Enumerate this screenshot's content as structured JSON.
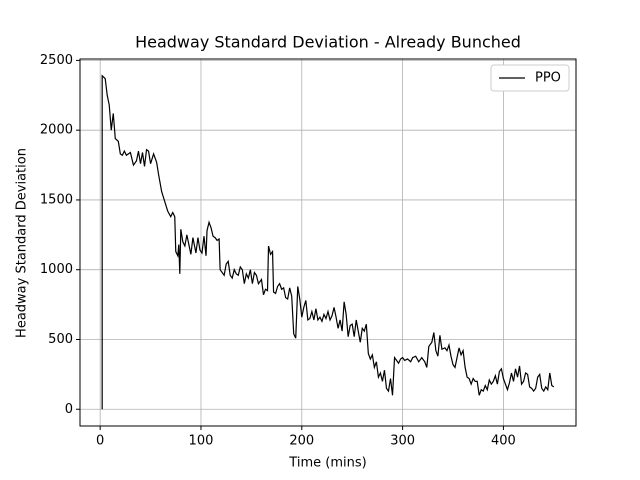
{
  "chart_data": {
    "type": "line",
    "title": "Headway Standard Deviation - Already Bunched",
    "xlabel": "Time (mins)",
    "ylabel": "Headway Standard Deviation",
    "xlim": [
      -20,
      472
    ],
    "ylim": [
      -120,
      2510
    ],
    "xticks": [
      0,
      100,
      200,
      300,
      400
    ],
    "yticks": [
      0,
      500,
      1000,
      1500,
      2000,
      2500
    ],
    "grid": true,
    "legend": "upper right",
    "x": [
      2,
      2,
      5,
      7,
      9,
      11,
      13,
      15,
      18,
      20,
      22,
      24,
      26,
      30,
      33,
      36,
      38,
      40,
      42,
      44,
      46,
      48,
      50,
      53,
      56,
      58,
      61,
      64,
      67,
      70,
      72,
      74,
      75,
      77,
      78,
      79,
      80,
      82,
      84,
      86,
      88,
      90,
      92,
      95,
      97,
      99,
      101,
      103,
      105,
      106,
      108,
      110,
      112,
      114,
      116,
      118,
      119,
      121,
      123,
      125,
      127,
      129,
      131,
      133,
      135,
      137,
      139,
      141,
      143,
      145,
      147,
      149,
      151,
      153,
      155,
      157,
      160,
      162,
      164,
      166,
      167,
      169,
      171,
      172,
      174,
      176,
      178,
      180,
      182,
      184,
      186,
      188,
      190,
      192,
      194,
      196,
      198,
      200,
      202,
      204,
      206,
      208,
      210,
      212,
      214,
      216,
      218,
      220,
      222,
      224,
      226,
      228,
      230,
      232,
      234,
      236,
      238,
      240,
      242,
      244,
      246,
      248,
      250,
      252,
      254,
      256,
      258,
      260,
      262,
      264,
      266,
      268,
      270,
      272,
      274,
      276,
      278,
      280,
      282,
      284,
      286,
      288,
      290,
      292,
      294,
      296,
      298,
      300,
      302,
      305,
      308,
      310,
      313,
      316,
      319,
      322,
      324,
      326,
      329,
      331,
      333,
      335,
      337,
      339,
      342,
      344,
      346,
      348,
      350,
      352,
      354,
      356,
      358,
      360,
      362,
      364,
      366,
      368,
      370,
      372,
      374,
      376,
      378,
      380,
      382,
      384,
      386,
      388,
      390,
      392,
      394,
      396,
      398,
      400,
      402,
      404,
      406,
      408,
      410,
      412,
      414,
      416,
      418,
      420,
      422,
      424,
      426,
      428,
      430,
      432,
      434,
      436,
      438,
      440,
      442,
      444,
      446,
      448,
      450
    ],
    "series": [
      {
        "name": "PPO",
        "color": "#000000",
        "values": [
          0,
          2390,
          2370,
          2250,
          2180,
          2000,
          2120,
          1940,
          1920,
          1830,
          1820,
          1850,
          1820,
          1840,
          1750,
          1780,
          1850,
          1760,
          1840,
          1740,
          1860,
          1850,
          1760,
          1830,
          1770,
          1680,
          1560,
          1490,
          1420,
          1380,
          1410,
          1380,
          1130,
          1100,
          1180,
          970,
          1290,
          1200,
          1170,
          1250,
          1180,
          1110,
          1230,
          1120,
          1230,
          1140,
          1120,
          1240,
          1100,
          1280,
          1340,
          1300,
          1240,
          1230,
          1210,
          1220,
          1000,
          980,
          960,
          1040,
          1060,
          960,
          940,
          1000,
          970,
          960,
          1020,
          1000,
          900,
          970,
          940,
          1000,
          900,
          980,
          960,
          900,
          930,
          820,
          860,
          850,
          1170,
          1110,
          1130,
          840,
          830,
          880,
          900,
          860,
          870,
          800,
          790,
          870,
          810,
          540,
          510,
          880,
          790,
          660,
          730,
          780,
          640,
          650,
          700,
          640,
          720,
          640,
          660,
          630,
          680,
          650,
          700,
          640,
          670,
          730,
          660,
          580,
          640,
          560,
          770,
          680,
          520,
          600,
          610,
          520,
          640,
          560,
          480,
          580,
          560,
          610,
          400,
          360,
          390,
          300,
          340,
          230,
          260,
          200,
          280,
          150,
          130,
          220,
          100,
          370,
          350,
          330,
          360,
          370,
          350,
          360,
          340,
          370,
          380,
          340,
          370,
          340,
          300,
          450,
          480,
          550,
          420,
          380,
          530,
          430,
          440,
          420,
          460,
          380,
          320,
          300,
          370,
          440,
          390,
          420,
          300,
          230,
          220,
          180,
          220,
          200,
          200,
          100,
          140,
          130,
          170,
          140,
          210,
          180,
          200,
          240,
          180,
          270,
          290,
          220,
          180,
          140,
          190,
          260,
          200,
          290,
          230,
          310,
          180,
          200,
          260,
          250,
          160,
          150,
          130,
          150,
          230,
          250,
          150,
          130,
          160,
          140,
          260,
          170,
          160
        ]
      }
    ]
  }
}
